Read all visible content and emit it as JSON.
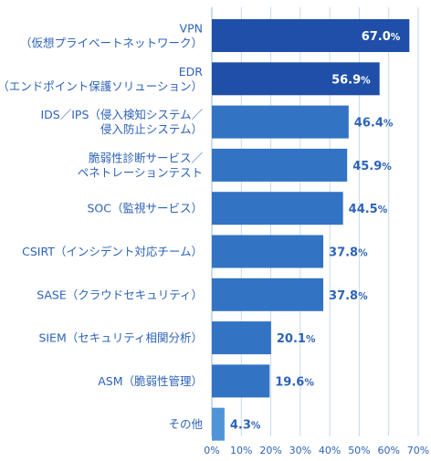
{
  "chart_data": {
    "type": "bar",
    "orientation": "horizontal",
    "categories": [
      [
        "VPN",
        "（仮想プライベートネットワーク）"
      ],
      [
        "EDR",
        "（エンドポイント保護ソリューション）"
      ],
      [
        "IDS／IPS（侵入検知システム／",
        "侵入防止システム）"
      ],
      [
        "脆弱性診断サービス／",
        "ペネトレーションテスト"
      ],
      [
        "SOC（監視サービス）"
      ],
      [
        "CSIRT（インシデント対応チーム）"
      ],
      [
        "SASE（クラウドセキュリティ）"
      ],
      [
        "SIEM（セキュリティ相関分析）"
      ],
      [
        "ASM（脆弱性管理）"
      ],
      [
        "その他"
      ]
    ],
    "values": [
      67.0,
      56.9,
      46.4,
      45.9,
      44.5,
      37.8,
      37.8,
      20.1,
      19.6,
      4.3
    ],
    "value_labels": [
      "67.0",
      "56.9",
      "46.4",
      "45.9",
      "44.5",
      "37.8",
      "37.8",
      "20.1",
      "19.6",
      "4.3"
    ],
    "value_unit": "%",
    "xlim": [
      0,
      70
    ],
    "x_ticks": [
      "0%",
      "10%",
      "20%",
      "30%",
      "40%",
      "50%",
      "60%",
      "70%"
    ],
    "grid": true,
    "colors": {
      "top": "#1f4fa8",
      "mid": "#3273c4",
      "other": "#4f94d8",
      "label": "#2e63b8",
      "value_inside": "#ffffff",
      "value_outside": "#2e63b8"
    }
  }
}
